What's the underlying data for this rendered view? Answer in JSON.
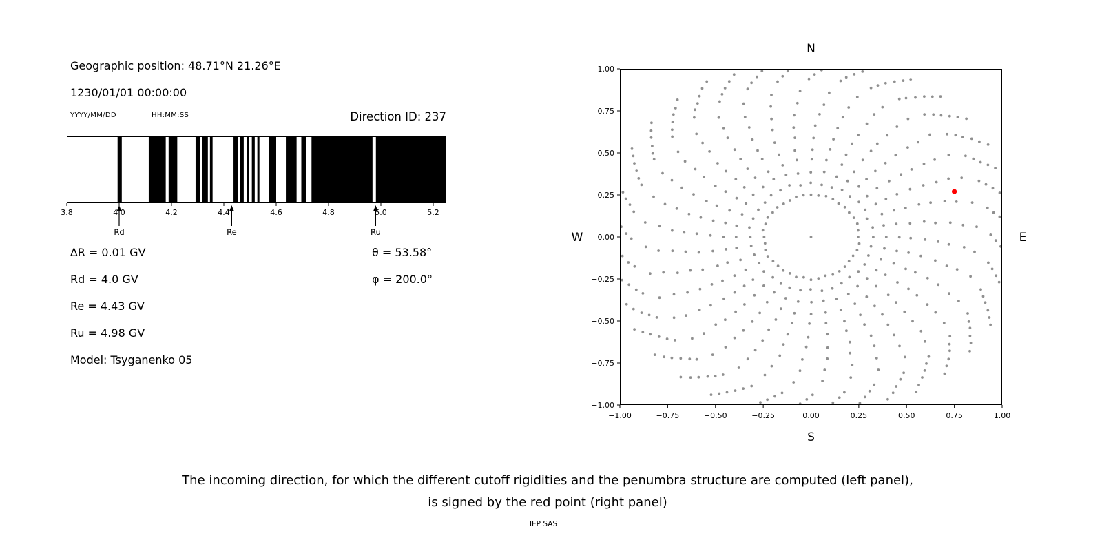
{
  "left_panel": {
    "geographic_position": "Geographic position: 48.71°N 21.26°E",
    "datetime": "1230/01/01 00:00:00",
    "date_format_label": "YYYY/MM/DD",
    "time_format_label": "HH:MM:SS",
    "direction_id": "Direction ID: 237",
    "stats": {
      "delta_r": "∆R = 0.01 GV",
      "rd": "Rd = 4.0 GV",
      "re": "Re = 4.43 GV",
      "ru": "Ru = 4.98 GV",
      "model": "Model: Tsyganenko 05",
      "theta": "θ = 53.58°",
      "phi": "φ = 200.0°"
    }
  },
  "caption": {
    "line1": "The incoming direction, for which the different cutoff rigidities and the penumbra structure are computed (left panel),",
    "line2": "is signed by the red point (right panel)",
    "credit": "IEP SAS"
  },
  "chart_data": [
    {
      "type": "bar",
      "description": "Penumbra structure: black bands = forbidden rigidity intervals (GV)",
      "xlim": [
        3.8,
        5.25
      ],
      "xticks": [
        3.8,
        4.0,
        4.2,
        4.4,
        4.6,
        4.8,
        5.0,
        5.2
      ],
      "xtick_labels": [
        "3.8",
        "4.0",
        "4.2",
        "4.4",
        "4.6",
        "4.8",
        "5.0",
        "5.2"
      ],
      "band_color": "#000000",
      "forbidden_bands_gv": [
        [
          3.994,
          4.01
        ],
        [
          4.113,
          4.178
        ],
        [
          4.189,
          4.222
        ],
        [
          4.292,
          4.31
        ],
        [
          4.318,
          4.339
        ],
        [
          4.347,
          4.357
        ],
        [
          4.437,
          4.453
        ],
        [
          4.461,
          4.476
        ],
        [
          4.487,
          4.497
        ],
        [
          4.507,
          4.518
        ],
        [
          4.528,
          4.536
        ],
        [
          4.572,
          4.6
        ],
        [
          4.637,
          4.678
        ],
        [
          4.696,
          4.714
        ],
        [
          4.735,
          4.968
        ],
        [
          4.981,
          5.25
        ]
      ],
      "markers": [
        {
          "label": "Rd",
          "x": 4.0
        },
        {
          "label": "Re",
          "x": 4.43
        },
        {
          "label": "Ru",
          "x": 4.98
        }
      ]
    },
    {
      "type": "scatter",
      "description": "Directions map: radial spokes of gray dots, incoming direction marked by red point",
      "xlim": [
        -1.0,
        1.0
      ],
      "ylim": [
        -1.0,
        1.0
      ],
      "xticks": [
        -1.0,
        -0.75,
        -0.5,
        -0.25,
        0.0,
        0.25,
        0.5,
        0.75,
        1.0
      ],
      "yticks": [
        1.0,
        0.75,
        0.5,
        0.25,
        0.0,
        -0.25,
        -0.5,
        -0.75,
        -1.0
      ],
      "xtick_labels": [
        "−1.00",
        "−0.75",
        "−0.50",
        "−0.25",
        "0.00",
        "0.25",
        "0.50",
        "0.75",
        "1.00"
      ],
      "ytick_labels": [
        "1.00",
        "0.75",
        "0.50",
        "0.25",
        "0.00",
        "−0.25",
        "−0.50",
        "−0.75",
        "−1.00"
      ],
      "compass": {
        "top": "N",
        "bottom": "S",
        "left": "W",
        "right": "E"
      },
      "dot_color": "#909090",
      "red_point": {
        "x": 0.75,
        "y": 0.27,
        "color": "#ff0000"
      },
      "pattern": {
        "spokes": 36,
        "inner_ring_radius": 0.25,
        "inner_ring_count": 40,
        "spoke_r_start": 0.32,
        "spoke_r_step": 0.068,
        "spoke_r_end": 0.92,
        "curvature": 0.35,
        "clump_r_start": 0.94,
        "clump_r_step": 0.027,
        "clump_count": 6,
        "clump_curvature": 0.035
      }
    }
  ]
}
